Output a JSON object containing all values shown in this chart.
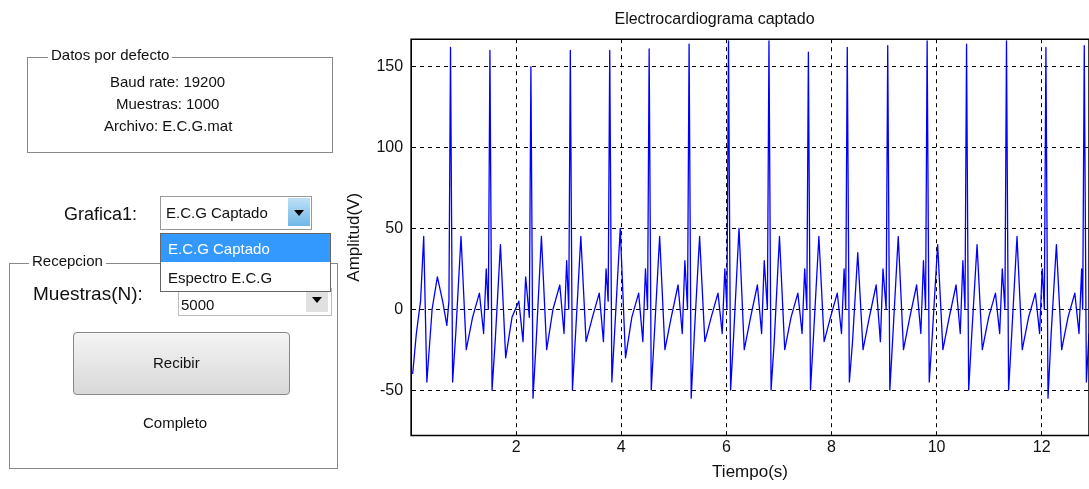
{
  "chart_data": {
    "type": "line",
    "title": "Electrocardiograma captado",
    "xlabel": "Tiempo(s)",
    "ylabel": "Amplitud(V)",
    "xlim": [
      0,
      12.9
    ],
    "xticks": [
      2,
      4,
      6,
      8,
      10,
      12
    ],
    "ylim": [
      -78,
      167
    ],
    "yticks": [
      -50,
      0,
      50,
      100,
      150
    ],
    "grid": true,
    "legend": false,
    "marker": "none",
    "line_style": "solid",
    "annotations": [
      "Datos por defecto",
      "Baud rate: 19200",
      "Muestras: 1000",
      "Archivo: E.C.G.mat",
      "Grafica1:",
      "E.C.G Captado",
      "E.C.G Captado",
      "Espectro E.C.G",
      "Recepcion",
      "Muestras(N):",
      "5000",
      "Recibir",
      "Completo"
    ],
    "series": [
      {
        "color": "#0000ff",
        "x": [
          0.03,
          0.1,
          0.18,
          0.24,
          0.3,
          0.4,
          0.5,
          0.6,
          0.68,
          0.72,
          0.75,
          0.79,
          0.85,
          0.95,
          1.05,
          1.17,
          1.3,
          1.38,
          1.43,
          1.47,
          1.5,
          1.54,
          1.6,
          1.7,
          1.8,
          1.92,
          2.05,
          2.13,
          2.18,
          2.25,
          2.28,
          2.32,
          2.38,
          2.48,
          2.58,
          2.7,
          2.83,
          2.91,
          2.96,
          3.0,
          3.03,
          3.07,
          3.13,
          3.23,
          3.33,
          3.45,
          3.58,
          3.66,
          3.71,
          3.75,
          3.78,
          3.82,
          3.88,
          3.98,
          4.08,
          4.2,
          4.33,
          4.41,
          4.46,
          4.5,
          4.53,
          4.57,
          4.63,
          4.73,
          4.83,
          4.95,
          5.08,
          5.16,
          5.21,
          5.26,
          5.29,
          5.33,
          5.39,
          5.49,
          5.59,
          5.71,
          5.84,
          5.92,
          5.97,
          6.01,
          6.04,
          6.08,
          6.14,
          6.24,
          6.34,
          6.46,
          6.59,
          6.67,
          6.72,
          6.78,
          6.81,
          6.85,
          6.91,
          7.01,
          7.11,
          7.23,
          7.36,
          7.44,
          7.49,
          7.53,
          7.56,
          7.6,
          7.66,
          7.76,
          7.86,
          7.98,
          8.11,
          8.19,
          8.24,
          8.27,
          8.3,
          8.34,
          8.4,
          8.5,
          8.6,
          8.72,
          8.85,
          8.93,
          8.98,
          9.04,
          9.07,
          9.11,
          9.17,
          9.27,
          9.37,
          9.49,
          9.62,
          9.7,
          9.75,
          9.79,
          9.82,
          9.86,
          9.92,
          10.02,
          10.12,
          10.24,
          10.37,
          10.45,
          10.5,
          10.54,
          10.57,
          10.61,
          10.67,
          10.77,
          10.87,
          10.99,
          11.12,
          11.2,
          11.25,
          11.3,
          11.33,
          11.37,
          11.43,
          11.53,
          11.63,
          11.75,
          11.88,
          11.96,
          12.01,
          12.05,
          12.08,
          12.12,
          12.18,
          12.28,
          12.38,
          12.5,
          12.63,
          12.71,
          12.76,
          12.78,
          12.81,
          12.85,
          12.9
        ],
        "values": [
          -40,
          -15,
          5,
          45,
          -45,
          0,
          20,
          5,
          -10,
          5,
          162,
          -45,
          -15,
          45,
          -25,
          -5,
          10,
          -15,
          25,
          0,
          160,
          -50,
          -20,
          40,
          -30,
          -5,
          5,
          -20,
          20,
          -5,
          150,
          -55,
          -20,
          45,
          -25,
          0,
          15,
          -15,
          30,
          0,
          160,
          -50,
          -15,
          45,
          -20,
          -5,
          10,
          -20,
          25,
          5,
          160,
          -45,
          -10,
          50,
          -30,
          -5,
          10,
          -20,
          25,
          0,
          161,
          -50,
          -15,
          45,
          -25,
          -5,
          15,
          -15,
          30,
          0,
          164,
          -55,
          -15,
          45,
          -20,
          -5,
          10,
          -15,
          25,
          0,
          166,
          -50,
          -15,
          50,
          -25,
          -5,
          15,
          -15,
          30,
          0,
          166,
          -50,
          -20,
          45,
          -25,
          -5,
          10,
          -15,
          25,
          0,
          159,
          -50,
          -15,
          45,
          -20,
          -5,
          10,
          -15,
          25,
          0,
          162,
          -45,
          -20,
          35,
          -25,
          -5,
          15,
          -20,
          25,
          0,
          163,
          -50,
          -15,
          45,
          -25,
          -5,
          15,
          -15,
          30,
          0,
          166,
          -45,
          -15,
          40,
          -25,
          -5,
          15,
          -15,
          30,
          0,
          164,
          -50,
          -15,
          40,
          -25,
          -5,
          10,
          -15,
          25,
          0,
          166,
          -50,
          -15,
          45,
          -25,
          -5,
          10,
          -15,
          25,
          0,
          162,
          -55,
          -15,
          40,
          -25,
          -5,
          10,
          -15,
          25,
          0,
          163,
          -45,
          -15
        ]
      }
    ]
  }
}
